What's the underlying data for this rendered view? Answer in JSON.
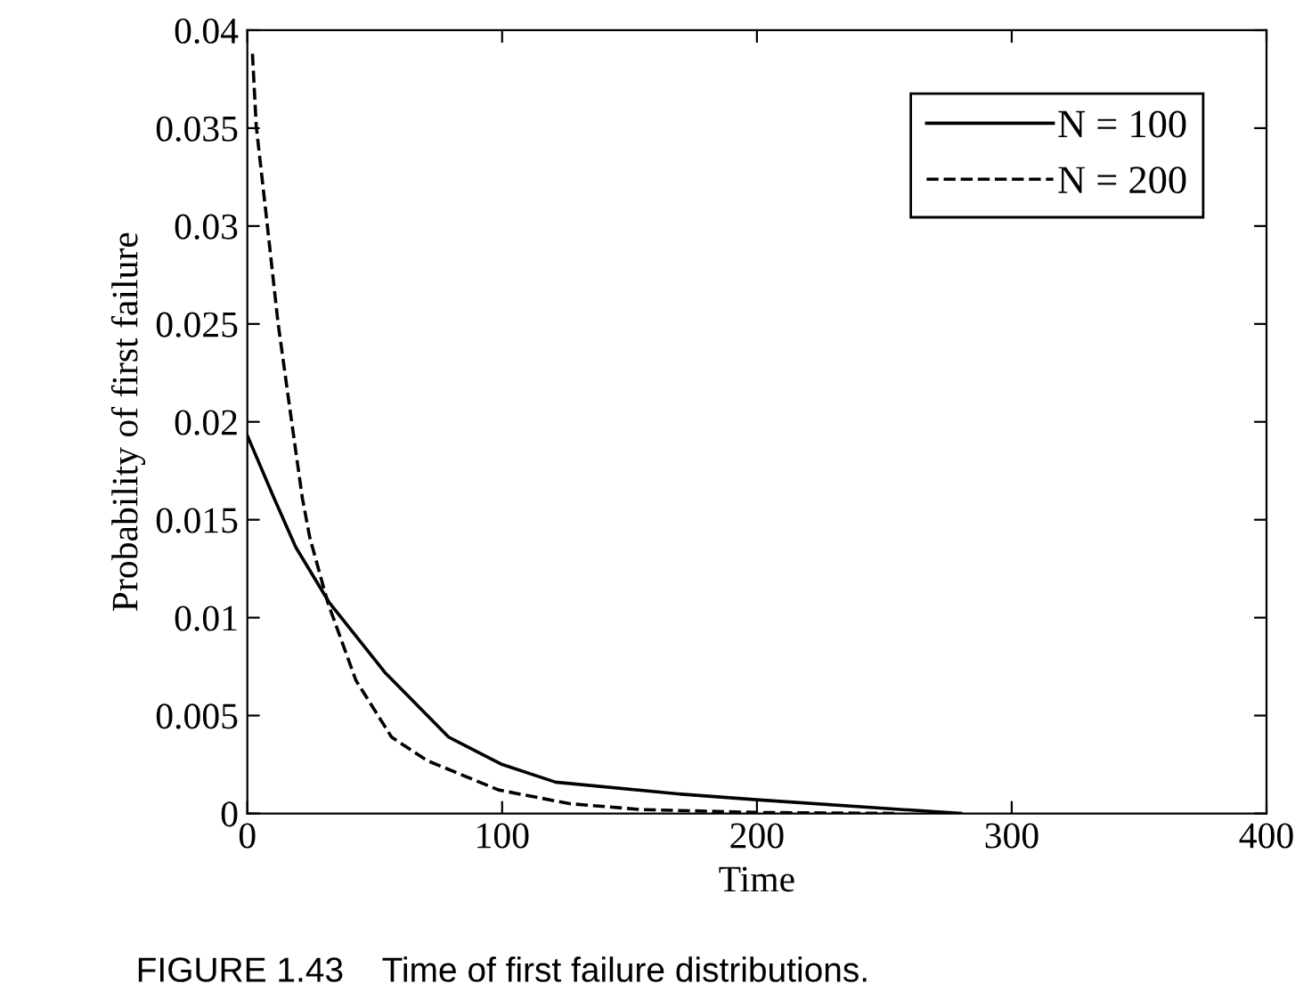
{
  "chart_data": {
    "type": "line",
    "xlabel": "Time",
    "ylabel": "Probability of first failure",
    "xlim": [
      0,
      400
    ],
    "xticks": [
      0,
      100,
      200,
      300,
      400
    ],
    "ylim": [
      0,
      0.04
    ],
    "yticks": [
      0,
      0.005,
      0.01,
      0.015,
      0.02,
      0.025,
      0.03,
      0.035,
      0.04
    ],
    "grid": false,
    "legend": "top right",
    "marker": "none",
    "annotations": [
      "FIGURE 1.43    Time of first failure distributions."
    ],
    "series": [
      {
        "name": "N = 100",
        "color": "#000000",
        "line_style": "solid",
        "x": [
          0,
          10.5,
          19,
          32,
          54,
          79,
          100,
          121,
          169,
          200,
          280
        ],
        "values": [
          0.0193,
          0.0161,
          0.0136,
          0.0108,
          0.0072,
          0.0039,
          0.0025,
          0.0016,
          0.001,
          0.0007,
          0
        ]
      },
      {
        "name": "N = 200",
        "color": "#000000",
        "line_style": "dashed",
        "x": [
          2,
          3.5,
          7.7,
          12,
          17.5,
          21.6,
          24.5,
          31.5,
          42.6,
          56.6,
          70.6,
          98.6,
          126.5,
          154.5,
          200,
          255
        ],
        "values": [
          0.0388,
          0.0351,
          0.0302,
          0.0251,
          0.0199,
          0.0161,
          0.0141,
          0.0108,
          0.0068,
          0.0039,
          0.0027,
          0.0012,
          0.0005,
          0.0002,
          5e-05,
          0
        ]
      }
    ]
  }
}
